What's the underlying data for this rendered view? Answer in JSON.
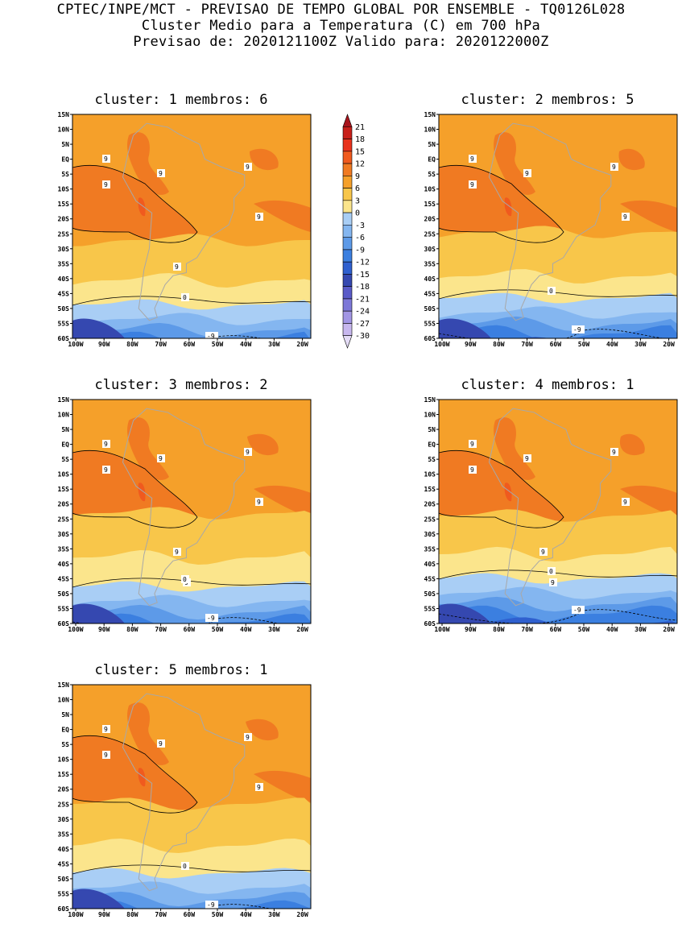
{
  "header": {
    "line1": "CPTEC/INPE/MCT - PREVISAO DE TEMPO GLOBAL POR ENSEMBLE - TQ0126L028",
    "line2": "Cluster Medio para a Temperatura (C) em 700 hPa",
    "line3": "Previsao de: 2020121100Z   Valido para: 2020122000Z"
  },
  "lat_labels": [
    "15N",
    "10N",
    "5N",
    "EQ",
    "5S",
    "10S",
    "15S",
    "20S",
    "25S",
    "30S",
    "35S",
    "40S",
    "45S",
    "50S",
    "55S",
    "60S"
  ],
  "lon_labels": [
    "100W",
    "90W",
    "80W",
    "70W",
    "60W",
    "50W",
    "40W",
    "30W",
    "20W"
  ],
  "colorbar": {
    "levels": [
      "21",
      "18",
      "15",
      "12",
      "9",
      "6",
      "3",
      "0",
      "-3",
      "-6",
      "-9",
      "-12",
      "-15",
      "-18",
      "-21",
      "-24",
      "-27",
      "-30"
    ],
    "colors": [
      "#a8141c",
      "#c8201a",
      "#e8321c",
      "#f05a1e",
      "#f07a22",
      "#f5a02a",
      "#f8c64a",
      "#fbe58c",
      "#a9cef5",
      "#84b6f0",
      "#5d9ae8",
      "#3b7fe0",
      "#2f60cf",
      "#3548b0",
      "#5a5bc8",
      "#7d78d8",
      "#a296e4",
      "#c7b7ee",
      "#e4dcf6"
    ]
  },
  "panels": [
    {
      "title": "cluster: 1   membros: 6",
      "contour_labels": [
        "9",
        "9",
        "9",
        "9",
        "9",
        "9",
        "0",
        "-9"
      ]
    },
    {
      "title": "cluster: 2   membros: 5",
      "contour_labels": [
        "9",
        "9",
        "9",
        "9",
        "9",
        "0",
        "-9"
      ]
    },
    {
      "title": "cluster: 3   membros: 2",
      "contour_labels": [
        "9",
        "9",
        "9",
        "9",
        "9",
        "9",
        "9",
        "0",
        "-9"
      ]
    },
    {
      "title": "cluster: 4   membros: 1",
      "contour_labels": [
        "9",
        "9",
        "9",
        "9",
        "9",
        "9",
        "9",
        "0",
        "0",
        "-9"
      ]
    },
    {
      "title": "cluster: 5   membros: 1",
      "contour_labels": [
        "9",
        "9",
        "9",
        "9",
        "9",
        "0",
        "-9"
      ]
    }
  ]
}
